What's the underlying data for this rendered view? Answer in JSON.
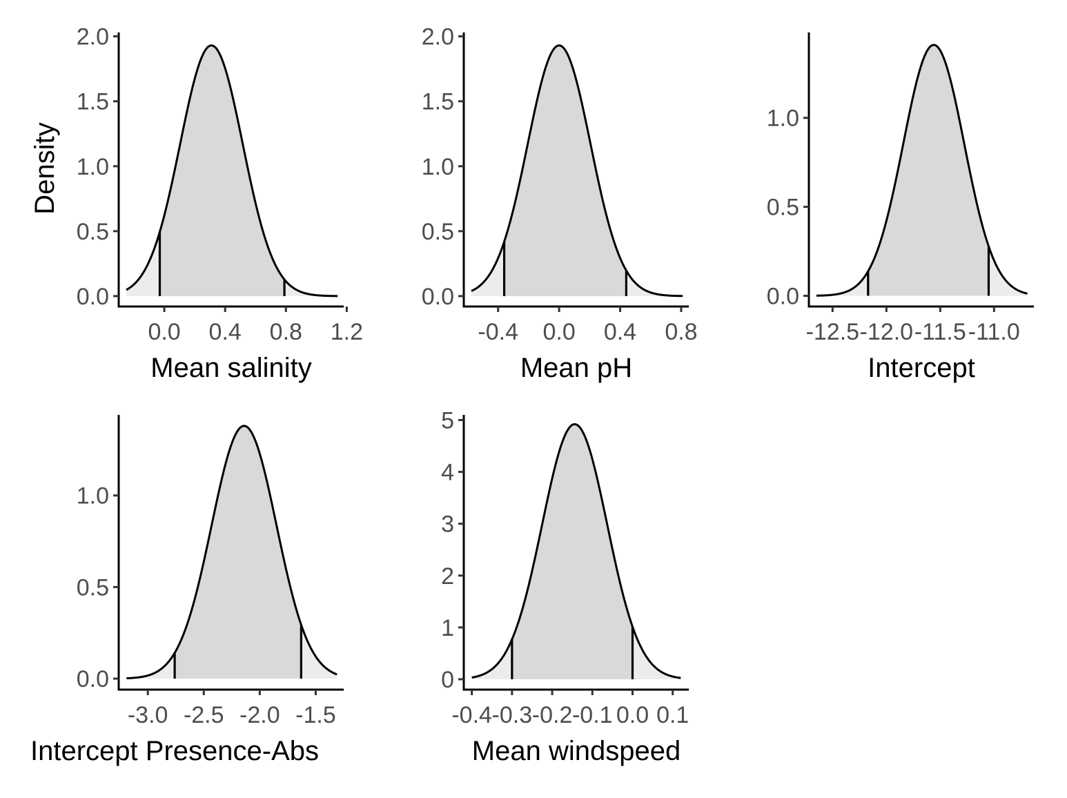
{
  "colors": {
    "ci_fill": "#d9d9d9",
    "tail_fill": "#ececec",
    "line": "#000000",
    "tick_text": "#4d4d4d"
  },
  "y_axis_title": "Density",
  "chart_data": [
    {
      "type": "area",
      "xlabel": "Mean salinity",
      "ylabel": "Density",
      "x_ticks": [
        "0.0",
        "0.4",
        "0.8",
        "1.2"
      ],
      "x_tick_values": [
        0.0,
        0.4,
        0.8,
        1.2
      ],
      "y_ticks": [
        "0.0",
        "0.5",
        "1.0",
        "1.5",
        "2.0"
      ],
      "y_tick_values": [
        0.0,
        0.5,
        1.0,
        1.5,
        2.0
      ],
      "xlim": [
        -0.3,
        1.18
      ],
      "ylim": [
        -0.08,
        2.03
      ],
      "x_range": [
        -0.25,
        1.14
      ],
      "mean": 0.31,
      "sd": 0.206,
      "peak": 1.93,
      "ci": [
        -0.03,
        0.79
      ],
      "grid": false
    },
    {
      "type": "area",
      "xlabel": "Mean pH",
      "ylabel": "",
      "x_ticks": [
        "-0.4",
        "0.0",
        "0.4",
        "0.8"
      ],
      "x_tick_values": [
        -0.4,
        0.0,
        0.4,
        0.8
      ],
      "y_ticks": [
        "0.0",
        "0.5",
        "1.0",
        "1.5",
        "2.0"
      ],
      "y_tick_values": [
        0.0,
        0.5,
        1.0,
        1.5,
        2.0
      ],
      "xlim": [
        -0.625,
        0.85
      ],
      "ylim": [
        -0.08,
        2.03
      ],
      "x_range": [
        -0.575,
        0.81
      ],
      "mean": 0.0,
      "sd": 0.206,
      "peak": 1.93,
      "ci": [
        -0.36,
        0.44
      ],
      "grid": false
    },
    {
      "type": "area",
      "xlabel": "Intercept",
      "ylabel": "",
      "x_ticks": [
        "-12.5",
        "-12.0",
        "-11.5",
        "-11.0"
      ],
      "x_tick_values": [
        -12.5,
        -12.0,
        -11.5,
        -11.0
      ],
      "y_ticks": [
        "0.0",
        "0.5",
        "1.0"
      ],
      "y_tick_values": [
        0.0,
        0.5,
        1.0
      ],
      "xlim": [
        -12.72,
        -10.63
      ],
      "ylim": [
        -0.06,
        1.48
      ],
      "x_range": [
        -12.65,
        -10.69
      ],
      "mean": -11.56,
      "sd": 0.283,
      "peak": 1.41,
      "ci": [
        -12.17,
        -11.05
      ],
      "grid": false
    },
    {
      "type": "area",
      "xlabel": "Intercept Presence-Abs",
      "ylabel": "",
      "x_ticks": [
        "-3.0",
        "-2.5",
        "-2.0",
        "-1.5"
      ],
      "x_tick_values": [
        -3.0,
        -2.5,
        -2.0,
        -1.5
      ],
      "y_ticks": [
        "0.0",
        "0.5",
        "1.0"
      ],
      "y_tick_values": [
        0.0,
        0.5,
        1.0
      ],
      "xlim": [
        -3.26,
        -1.25
      ],
      "ylim": [
        -0.06,
        1.44
      ],
      "x_range": [
        -3.19,
        -1.31
      ],
      "mean": -2.14,
      "sd": 0.29,
      "peak": 1.38,
      "ci": [
        -2.76,
        -1.63
      ],
      "grid": false
    },
    {
      "type": "area",
      "xlabel": "Mean windspeed",
      "ylabel": "",
      "x_ticks": [
        "-0.4",
        "-0.3",
        "-0.2",
        "-0.1",
        "0.0",
        "0.1"
      ],
      "x_tick_values": [
        -0.4,
        -0.3,
        -0.2,
        -0.1,
        0.0,
        0.1
      ],
      "y_ticks": [
        "0",
        "1",
        "2",
        "3",
        "4",
        "5"
      ],
      "y_tick_values": [
        0,
        1,
        2,
        3,
        4,
        5
      ],
      "xlim": [
        -0.42,
        0.14
      ],
      "ylim": [
        -0.2,
        5.1
      ],
      "x_range": [
        -0.4,
        0.12
      ],
      "mean": -0.144,
      "sd": 0.081,
      "peak": 4.92,
      "ci": [
        -0.3,
        0.0
      ],
      "grid": false
    }
  ]
}
